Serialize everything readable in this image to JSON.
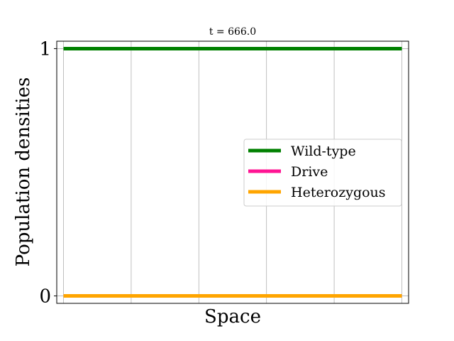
{
  "chart_data": {
    "type": "line",
    "title": "t = 666.0",
    "xlabel": "Space",
    "ylabel": "Population densities",
    "x": [
      0,
      1
    ],
    "xlim": [
      -0.02,
      1.02
    ],
    "ylim": [
      -0.03,
      1.03
    ],
    "yticks": [
      0,
      1
    ],
    "ytick_labels": [
      "0",
      "1"
    ],
    "grid": "vertical",
    "xgrid": [
      0,
      0.2,
      0.4,
      0.6,
      0.8,
      1.0
    ],
    "legend_position": "center-right",
    "series": [
      {
        "name": "Wild-type",
        "values": [
          1,
          1
        ],
        "color": "#008000"
      },
      {
        "name": "Drive",
        "values": [
          0,
          0
        ],
        "color": "#ff1493"
      },
      {
        "name": "Heterozygous",
        "values": [
          0,
          0
        ],
        "color": "#ffa500"
      }
    ]
  }
}
